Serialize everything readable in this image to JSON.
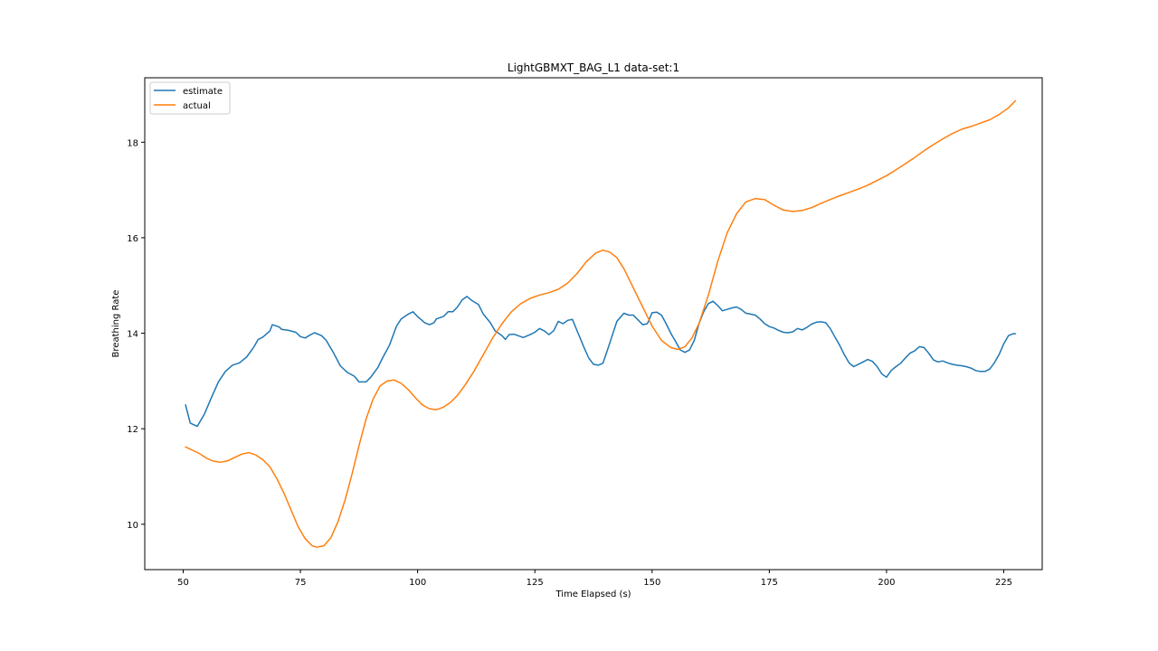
{
  "chart_data": {
    "type": "line",
    "title": "LightGBMXT_BAG_L1 data-set:1",
    "xlabel": "Time Elapsed (s)",
    "ylabel": "Breathing Rate",
    "xlim": [
      41.8,
      233.2
    ],
    "ylim": [
      9.05,
      19.35
    ],
    "xticks": [
      50,
      75,
      100,
      125,
      150,
      175,
      200,
      225
    ],
    "yticks": [
      10,
      12,
      14,
      16,
      18
    ],
    "grid": false,
    "legend_position": "top-left",
    "series": [
      {
        "name": "estimate",
        "color": "#1f77b4",
        "points": [
          [
            50.5,
            12.5
          ],
          [
            51.5,
            12.12
          ],
          [
            53,
            12.05
          ],
          [
            54.5,
            12.3
          ],
          [
            56,
            12.65
          ],
          [
            57.5,
            12.98
          ],
          [
            59,
            13.2
          ],
          [
            60.5,
            13.33
          ],
          [
            62,
            13.38
          ],
          [
            63.5,
            13.5
          ],
          [
            65,
            13.7
          ],
          [
            66,
            13.87
          ],
          [
            67,
            13.92
          ],
          [
            68.5,
            14.05
          ],
          [
            69,
            14.18
          ],
          [
            70.5,
            14.13
          ],
          [
            71,
            14.08
          ],
          [
            72.5,
            14.06
          ],
          [
            74,
            14.02
          ],
          [
            75,
            13.93
          ],
          [
            76,
            13.9
          ],
          [
            77,
            13.96
          ],
          [
            78,
            14.01
          ],
          [
            79.5,
            13.95
          ],
          [
            80.5,
            13.85
          ],
          [
            82,
            13.6
          ],
          [
            83.5,
            13.32
          ],
          [
            85,
            13.18
          ],
          [
            86.5,
            13.1
          ],
          [
            87.5,
            12.98
          ],
          [
            89,
            12.98
          ],
          [
            90,
            13.08
          ],
          [
            91.5,
            13.28
          ],
          [
            92.5,
            13.48
          ],
          [
            94,
            13.75
          ],
          [
            95.5,
            14.15
          ],
          [
            96.5,
            14.3
          ],
          [
            98,
            14.4
          ],
          [
            99,
            14.45
          ],
          [
            100,
            14.35
          ],
          [
            101.5,
            14.22
          ],
          [
            102.5,
            14.18
          ],
          [
            103.5,
            14.22
          ],
          [
            104,
            14.3
          ],
          [
            105.5,
            14.35
          ],
          [
            106.5,
            14.45
          ],
          [
            107.5,
            14.45
          ],
          [
            108.5,
            14.55
          ],
          [
            109.5,
            14.7
          ],
          [
            110.5,
            14.77
          ],
          [
            111.5,
            14.69
          ],
          [
            113,
            14.6
          ],
          [
            114,
            14.4
          ],
          [
            115.5,
            14.22
          ],
          [
            116.5,
            14.05
          ],
          [
            118,
            13.95
          ],
          [
            118.7,
            13.87
          ],
          [
            119.5,
            13.97
          ],
          [
            120.5,
            13.98
          ],
          [
            122,
            13.93
          ],
          [
            122.5,
            13.91
          ],
          [
            124,
            13.97
          ],
          [
            125,
            14.02
          ],
          [
            126,
            14.1
          ],
          [
            127,
            14.05
          ],
          [
            128,
            13.97
          ],
          [
            129,
            14.05
          ],
          [
            130,
            14.25
          ],
          [
            131,
            14.2
          ],
          [
            132,
            14.27
          ],
          [
            133,
            14.29
          ],
          [
            134,
            14.05
          ],
          [
            135.5,
            13.7
          ],
          [
            136.5,
            13.48
          ],
          [
            137.5,
            13.35
          ],
          [
            138.5,
            13.33
          ],
          [
            139.5,
            13.37
          ],
          [
            140.5,
            13.65
          ],
          [
            141.5,
            13.95
          ],
          [
            142.5,
            14.25
          ],
          [
            144,
            14.42
          ],
          [
            145,
            14.38
          ],
          [
            146,
            14.38
          ],
          [
            147,
            14.28
          ],
          [
            148,
            14.18
          ],
          [
            149,
            14.2
          ],
          [
            150,
            14.43
          ],
          [
            151,
            14.44
          ],
          [
            152,
            14.38
          ],
          [
            153,
            14.2
          ],
          [
            154,
            14.0
          ],
          [
            155,
            13.83
          ],
          [
            156,
            13.65
          ],
          [
            157,
            13.6
          ],
          [
            158,
            13.65
          ],
          [
            159,
            13.85
          ],
          [
            160,
            14.2
          ],
          [
            161,
            14.45
          ],
          [
            162,
            14.62
          ],
          [
            163,
            14.67
          ],
          [
            164,
            14.58
          ],
          [
            165,
            14.47
          ],
          [
            166,
            14.5
          ],
          [
            167,
            14.53
          ],
          [
            168,
            14.55
          ],
          [
            169,
            14.5
          ],
          [
            170,
            14.42
          ],
          [
            171,
            14.4
          ],
          [
            172,
            14.38
          ],
          [
            173,
            14.3
          ],
          [
            174,
            14.2
          ],
          [
            175,
            14.14
          ],
          [
            176,
            14.11
          ],
          [
            177,
            14.06
          ],
          [
            178,
            14.02
          ],
          [
            179,
            14.01
          ],
          [
            180,
            14.03
          ],
          [
            181,
            14.1
          ],
          [
            182,
            14.07
          ],
          [
            183,
            14.12
          ],
          [
            184,
            14.19
          ],
          [
            185,
            14.23
          ],
          [
            186,
            14.24
          ],
          [
            187,
            14.22
          ],
          [
            188,
            14.1
          ],
          [
            189,
            13.92
          ],
          [
            190,
            13.75
          ],
          [
            191,
            13.55
          ],
          [
            192,
            13.38
          ],
          [
            193,
            13.3
          ],
          [
            194,
            13.35
          ],
          [
            195,
            13.4
          ],
          [
            196,
            13.45
          ],
          [
            197,
            13.41
          ],
          [
            198,
            13.3
          ],
          [
            199,
            13.15
          ],
          [
            200,
            13.08
          ],
          [
            201,
            13.22
          ],
          [
            202,
            13.3
          ],
          [
            203,
            13.37
          ],
          [
            204,
            13.48
          ],
          [
            205,
            13.58
          ],
          [
            206,
            13.63
          ],
          [
            207,
            13.72
          ],
          [
            208,
            13.7
          ],
          [
            209,
            13.58
          ],
          [
            210,
            13.44
          ],
          [
            211,
            13.4
          ],
          [
            212,
            13.42
          ],
          [
            213,
            13.38
          ],
          [
            214,
            13.35
          ],
          [
            215,
            13.33
          ],
          [
            216,
            13.32
          ],
          [
            217,
            13.3
          ],
          [
            218,
            13.27
          ],
          [
            219,
            13.22
          ],
          [
            220,
            13.2
          ],
          [
            221,
            13.2
          ],
          [
            222,
            13.25
          ],
          [
            223,
            13.38
          ],
          [
            224,
            13.55
          ],
          [
            225,
            13.78
          ],
          [
            226,
            13.95
          ],
          [
            227,
            13.99
          ],
          [
            227.5,
            13.99
          ]
        ]
      },
      {
        "name": "actual",
        "color": "#ff7f0e",
        "points": [
          [
            50.5,
            11.62
          ],
          [
            52,
            11.55
          ],
          [
            53.5,
            11.48
          ],
          [
            55,
            11.38
          ],
          [
            56.5,
            11.32
          ],
          [
            58,
            11.3
          ],
          [
            59.5,
            11.33
          ],
          [
            61,
            11.4
          ],
          [
            62.5,
            11.47
          ],
          [
            64,
            11.5
          ],
          [
            65.5,
            11.45
          ],
          [
            67,
            11.35
          ],
          [
            68.5,
            11.2
          ],
          [
            70,
            10.95
          ],
          [
            71.5,
            10.65
          ],
          [
            73,
            10.3
          ],
          [
            74.5,
            9.95
          ],
          [
            76,
            9.7
          ],
          [
            77.5,
            9.55
          ],
          [
            78.5,
            9.52
          ],
          [
            80,
            9.55
          ],
          [
            81.5,
            9.72
          ],
          [
            83,
            10.05
          ],
          [
            84.5,
            10.5
          ],
          [
            86,
            11.05
          ],
          [
            87.5,
            11.65
          ],
          [
            89,
            12.2
          ],
          [
            90.5,
            12.62
          ],
          [
            92,
            12.9
          ],
          [
            93.5,
            13.0
          ],
          [
            95,
            13.02
          ],
          [
            96.5,
            12.95
          ],
          [
            98,
            12.82
          ],
          [
            99.5,
            12.65
          ],
          [
            101,
            12.5
          ],
          [
            102.5,
            12.42
          ],
          [
            104,
            12.4
          ],
          [
            105.5,
            12.45
          ],
          [
            107,
            12.55
          ],
          [
            108.5,
            12.7
          ],
          [
            110,
            12.9
          ],
          [
            112,
            13.2
          ],
          [
            114,
            13.55
          ],
          [
            116,
            13.9
          ],
          [
            118,
            14.2
          ],
          [
            120,
            14.45
          ],
          [
            122,
            14.62
          ],
          [
            124,
            14.73
          ],
          [
            126,
            14.8
          ],
          [
            128,
            14.85
          ],
          [
            130,
            14.92
          ],
          [
            132,
            15.05
          ],
          [
            134,
            15.25
          ],
          [
            136,
            15.5
          ],
          [
            138,
            15.68
          ],
          [
            139.5,
            15.74
          ],
          [
            141,
            15.7
          ],
          [
            142.5,
            15.58
          ],
          [
            144,
            15.35
          ],
          [
            146,
            14.95
          ],
          [
            148,
            14.55
          ],
          [
            150,
            14.15
          ],
          [
            152,
            13.85
          ],
          [
            154,
            13.7
          ],
          [
            155.5,
            13.66
          ],
          [
            157,
            13.72
          ],
          [
            158.5,
            13.9
          ],
          [
            160,
            14.2
          ],
          [
            162,
            14.8
          ],
          [
            164,
            15.5
          ],
          [
            166,
            16.1
          ],
          [
            168,
            16.5
          ],
          [
            170,
            16.75
          ],
          [
            172,
            16.82
          ],
          [
            174,
            16.8
          ],
          [
            176,
            16.68
          ],
          [
            178,
            16.58
          ],
          [
            180,
            16.55
          ],
          [
            182,
            16.57
          ],
          [
            184,
            16.63
          ],
          [
            186,
            16.72
          ],
          [
            188,
            16.8
          ],
          [
            190,
            16.88
          ],
          [
            192,
            16.95
          ],
          [
            194,
            17.02
          ],
          [
            196,
            17.1
          ],
          [
            198,
            17.2
          ],
          [
            200,
            17.3
          ],
          [
            202,
            17.42
          ],
          [
            204,
            17.55
          ],
          [
            206,
            17.68
          ],
          [
            208,
            17.82
          ],
          [
            210,
            17.95
          ],
          [
            212,
            18.07
          ],
          [
            214,
            18.18
          ],
          [
            216,
            18.27
          ],
          [
            218,
            18.33
          ],
          [
            220,
            18.4
          ],
          [
            222,
            18.47
          ],
          [
            224,
            18.58
          ],
          [
            226,
            18.72
          ],
          [
            227.5,
            18.87
          ]
        ]
      }
    ]
  }
}
